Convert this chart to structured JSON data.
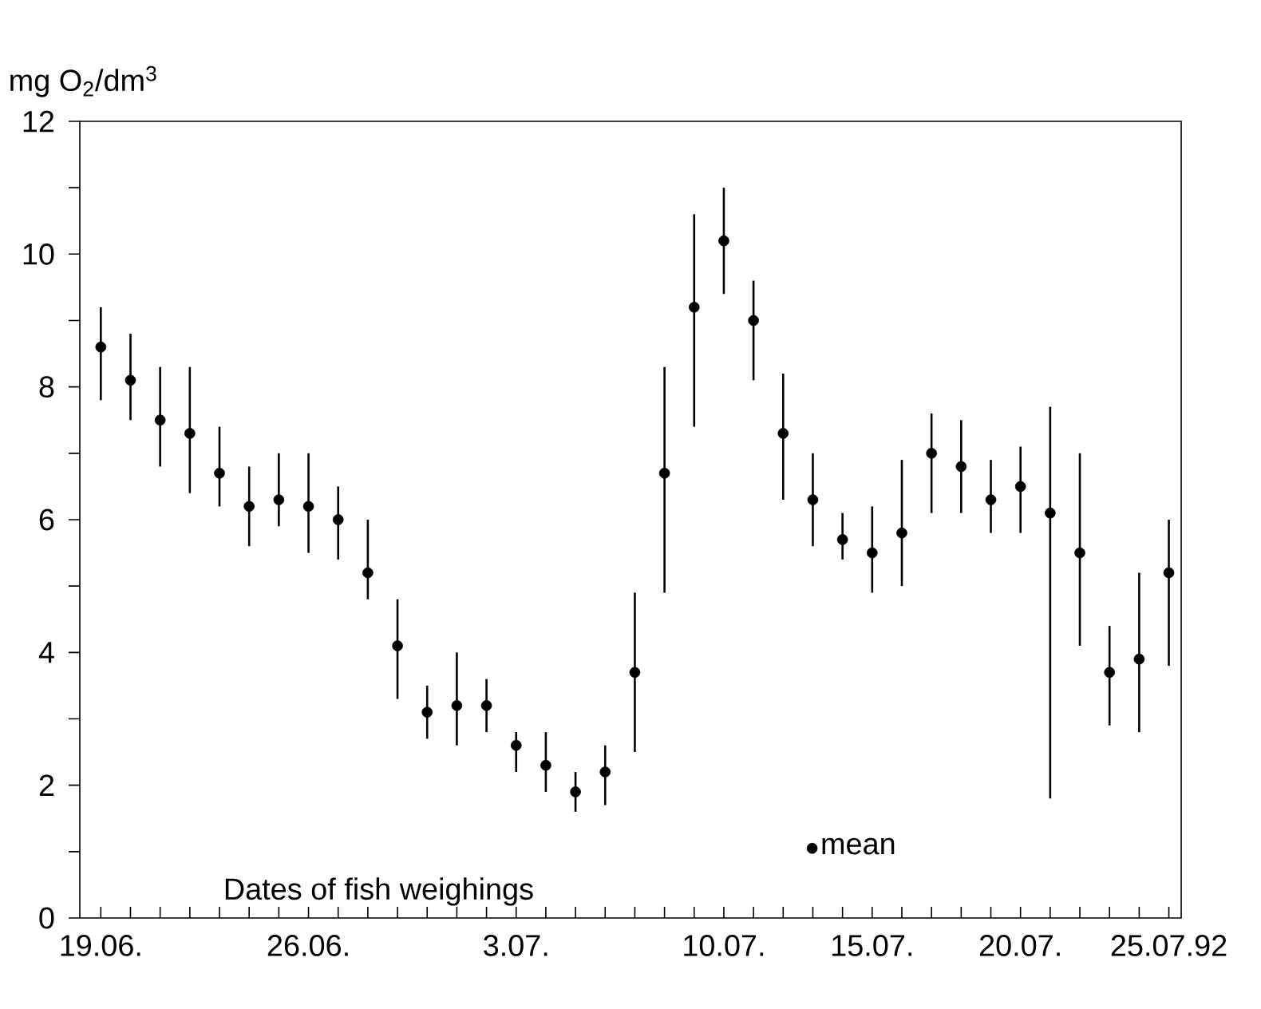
{
  "chart_data": {
    "type": "scatter",
    "xlabel": "Dates of fish weighings",
    "ylabel": "mg O$_{2}$/dm$^{3}$",
    "x": [
      "1992-06-19",
      "1992-06-20",
      "1992-06-21",
      "1992-06-22",
      "1992-06-23",
      "1992-06-24",
      "1992-06-25",
      "1992-06-26",
      "1992-06-27",
      "1992-06-28",
      "1992-06-29",
      "1992-06-30",
      "1992-07-01",
      "1992-07-02",
      "1992-07-03",
      "1992-07-04",
      "1992-07-05",
      "1992-07-06",
      "1992-07-07",
      "1992-07-08",
      "1992-07-09",
      "1992-07-10",
      "1992-07-11",
      "1992-07-12",
      "1992-07-13",
      "1992-07-14",
      "1992-07-15",
      "1992-07-16",
      "1992-07-17",
      "1992-07-18",
      "1992-07-19",
      "1992-07-20",
      "1992-07-21",
      "1992-07-22",
      "1992-07-23",
      "1992-07-24",
      "1992-07-25"
    ],
    "series": [
      {
        "name": "mean",
        "color": "#000000",
        "values": [
          8.6,
          8.1,
          7.5,
          7.3,
          6.7,
          6.2,
          6.3,
          6.2,
          6.0,
          5.2,
          4.1,
          3.1,
          3.2,
          3.2,
          2.6,
          2.3,
          1.9,
          2.2,
          3.7,
          6.7,
          9.2,
          10.2,
          9.0,
          7.3,
          6.3,
          5.7,
          5.5,
          5.8,
          7.0,
          6.8,
          6.3,
          6.5,
          6.1,
          5.5,
          3.7,
          3.9,
          5.2
        ],
        "errors": [
          [
            7.8,
            9.2
          ],
          [
            7.5,
            8.8
          ],
          [
            6.8,
            8.3
          ],
          [
            6.4,
            8.3
          ],
          [
            6.2,
            7.4
          ],
          [
            5.6,
            6.8
          ],
          [
            5.9,
            7.0
          ],
          [
            5.5,
            7.0
          ],
          [
            5.4,
            6.5
          ],
          [
            4.8,
            6.0
          ],
          [
            3.3,
            4.8
          ],
          [
            2.7,
            3.5
          ],
          [
            2.6,
            4.0
          ],
          [
            2.8,
            3.6
          ],
          [
            2.2,
            2.8
          ],
          [
            1.9,
            2.8
          ],
          [
            1.6,
            2.2
          ],
          [
            1.7,
            2.6
          ],
          [
            2.5,
            4.9
          ],
          [
            4.9,
            8.3
          ],
          [
            7.4,
            10.6
          ],
          [
            9.4,
            11.0
          ],
          [
            8.1,
            9.6
          ],
          [
            6.3,
            8.2
          ],
          [
            5.6,
            7.0
          ],
          [
            5.4,
            6.1
          ],
          [
            4.9,
            6.2
          ],
          [
            5.0,
            6.9
          ],
          [
            6.1,
            7.6
          ],
          [
            6.1,
            7.5
          ],
          [
            5.8,
            6.9
          ],
          [
            5.8,
            7.1
          ],
          [
            1.8,
            7.7
          ],
          [
            4.1,
            7.0
          ],
          [
            2.9,
            4.4
          ],
          [
            2.8,
            5.2
          ],
          [
            3.8,
            6.0
          ]
        ]
      }
    ],
    "xlim": [
      "1992-06-18T07:00",
      "1992-07-25T10:00"
    ],
    "xticks": [
      {
        "value": "1992-06-19",
        "label": "19.06."
      },
      {
        "value": "1992-06-20",
        "label": null
      },
      {
        "value": "1992-06-21",
        "label": null
      },
      {
        "value": "1992-06-22",
        "label": null
      },
      {
        "value": "1992-06-23",
        "label": null
      },
      {
        "value": "1992-06-24",
        "label": null
      },
      {
        "value": "1992-06-25",
        "label": null
      },
      {
        "value": "1992-06-26",
        "label": "26.06."
      },
      {
        "value": "1992-06-27",
        "label": null
      },
      {
        "value": "1992-06-28",
        "label": null
      },
      {
        "value": "1992-06-29",
        "label": null
      },
      {
        "value": "1992-06-30",
        "label": null
      },
      {
        "value": "1992-07-01",
        "label": null
      },
      {
        "value": "1992-07-02",
        "label": null
      },
      {
        "value": "1992-07-03",
        "label": "3.07."
      },
      {
        "value": "1992-07-04",
        "label": null
      },
      {
        "value": "1992-07-05",
        "label": null
      },
      {
        "value": "1992-07-06",
        "label": null
      },
      {
        "value": "1992-07-07",
        "label": null
      },
      {
        "value": "1992-07-08",
        "label": null
      },
      {
        "value": "1992-07-09",
        "label": null
      },
      {
        "value": "1992-07-10",
        "label": "10.07."
      },
      {
        "value": "1992-07-11",
        "label": null
      },
      {
        "value": "1992-07-12",
        "label": null
      },
      {
        "value": "1992-07-13",
        "label": null
      },
      {
        "value": "1992-07-14",
        "label": null
      },
      {
        "value": "1992-07-15",
        "label": "15.07."
      },
      {
        "value": "1992-07-16",
        "label": null
      },
      {
        "value": "1992-07-17",
        "label": null
      },
      {
        "value": "1992-07-18",
        "label": null
      },
      {
        "value": "1992-07-19",
        "label": null
      },
      {
        "value": "1992-07-20",
        "label": "20.07."
      },
      {
        "value": "1992-07-21",
        "label": null
      },
      {
        "value": "1992-07-22",
        "label": null
      },
      {
        "value": "1992-07-23",
        "label": null
      },
      {
        "value": "1992-07-24",
        "label": null
      },
      {
        "value": "1992-07-25",
        "label": "25.07.92"
      }
    ],
    "ylim": [
      0,
      12
    ],
    "yticks": [
      0,
      {
        "value": 1,
        "label": null
      },
      2,
      {
        "value": 3,
        "label": null
      },
      4,
      {
        "value": 5,
        "label": null
      },
      6,
      {
        "value": 7,
        "label": null
      },
      8,
      {
        "value": 9,
        "label": null
      },
      10,
      {
        "value": 11,
        "label": null
      },
      12
    ],
    "legend": "bottom",
    "grid": false
  }
}
